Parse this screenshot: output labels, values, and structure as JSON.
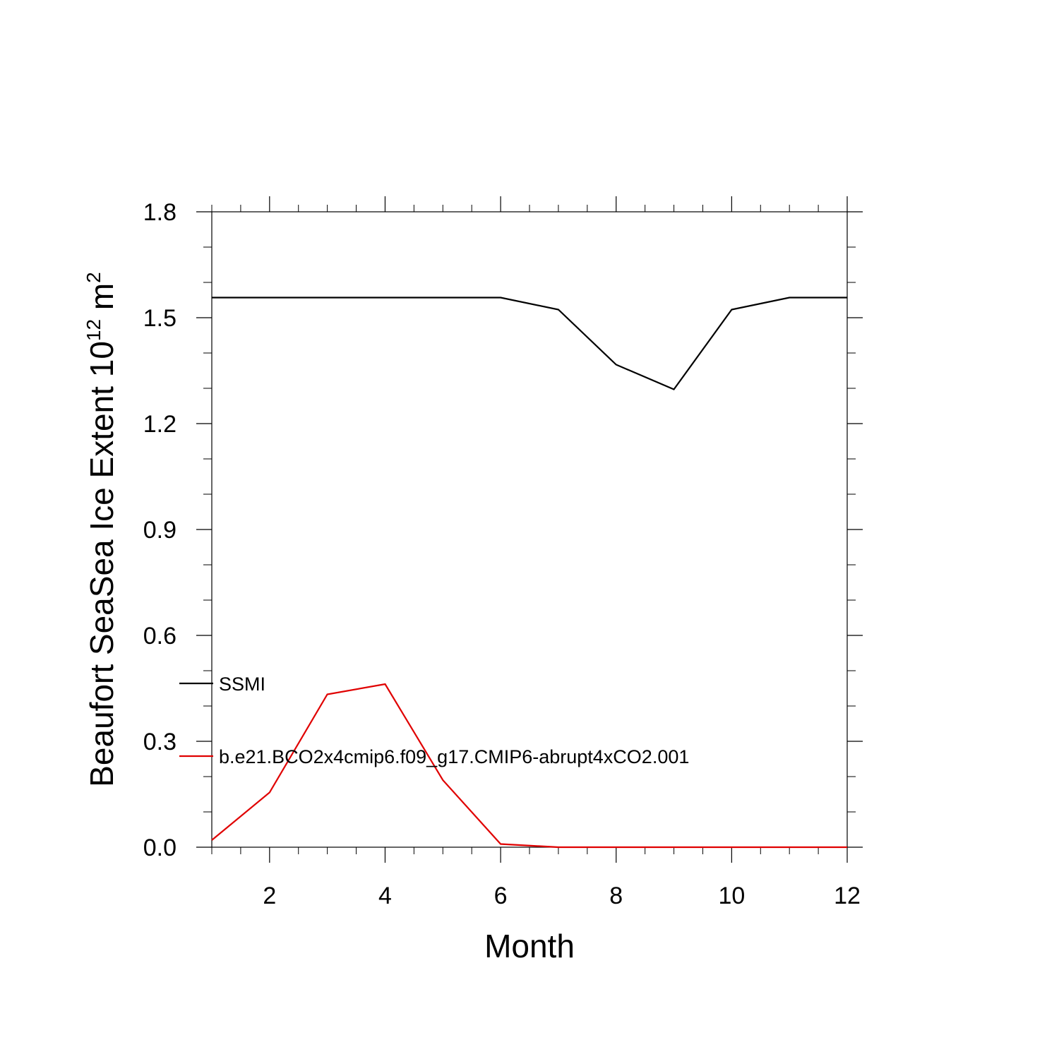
{
  "chart_data": {
    "type": "line",
    "title": "",
    "xlabel": "Month",
    "ylabel": {
      "prefix": "Beaufort SeaSea Ice Extent 10",
      "exponent1": "12",
      "unit": " m",
      "exponent2": "2"
    },
    "xlim": [
      1,
      12
    ],
    "ylim": [
      0,
      1.8
    ],
    "xticks": [
      2,
      4,
      6,
      8,
      10,
      12
    ],
    "yticks": [
      "0.0",
      "0.3",
      "0.6",
      "0.9",
      "1.2",
      "1.5",
      "1.8"
    ],
    "x": [
      1,
      2,
      3,
      4,
      5,
      6,
      7,
      8,
      9,
      10,
      11,
      12
    ],
    "series": [
      {
        "name": "SSMI",
        "color": "#000000",
        "values": [
          1.557,
          1.557,
          1.557,
          1.557,
          1.557,
          1.557,
          1.523,
          1.367,
          1.297,
          1.523,
          1.557,
          1.557
        ]
      },
      {
        "name": "b.e21.BCO2x4cmip6.f09_g17.CMIP6-abrupt4xCO2.001",
        "color": "#e00000",
        "values": [
          0.02,
          0.155,
          0.433,
          0.462,
          0.19,
          0.009,
          0.0,
          0.0,
          0.0,
          0.0,
          0.0,
          0.0
        ]
      }
    ],
    "legend_position": "lower-left",
    "grid": false
  }
}
